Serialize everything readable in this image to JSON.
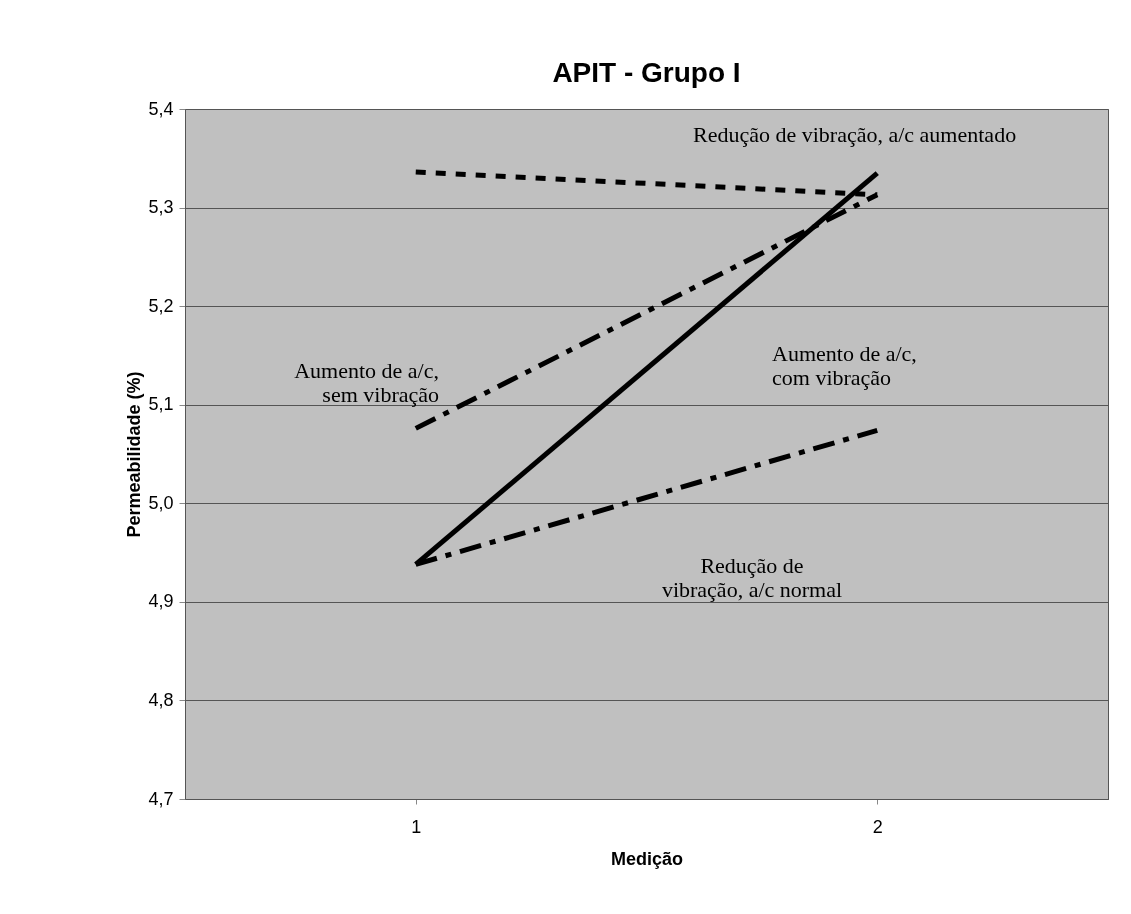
{
  "chart_data": {
    "type": "line",
    "title": "APIT - Grupo I",
    "xlabel": "Medição",
    "ylabel": "Permeabilidade (%)",
    "categories": [
      "1",
      "2"
    ],
    "series": [
      {
        "name": "Redução de vibração, a/c aumentado",
        "color": "#000000",
        "line_style": "dotted",
        "values": [
          5.336,
          5.313
        ]
      },
      {
        "name": "Aumento de a/c,\ncom vibração",
        "color": "#000000",
        "line_style": "solid",
        "values": [
          4.938,
          5.335
        ]
      },
      {
        "name": "Aumento de a/c,\nsem vibração",
        "color": "#000000",
        "line_style": "dashed",
        "values": [
          5.076,
          5.313
        ]
      },
      {
        "name": "Redução de\nvibração, a/c normal",
        "color": "#000000",
        "line_style": "dashed",
        "values": [
          4.938,
          5.074
        ]
      }
    ],
    "ylim": [
      4.7,
      5.4
    ],
    "yticks": [
      {
        "value": 4.7,
        "label": "4,7"
      },
      {
        "value": 4.8,
        "label": "4,8"
      },
      {
        "value": 4.9,
        "label": "4,9"
      },
      {
        "value": 5.0,
        "label": "5,0"
      },
      {
        "value": 5.1,
        "label": "5,1"
      },
      {
        "value": 5.2,
        "label": "5,2"
      },
      {
        "value": 5.3,
        "label": "5,3"
      },
      {
        "value": 5.4,
        "label": "5,4"
      }
    ],
    "grid": "y",
    "legend": false,
    "marker": "none"
  }
}
